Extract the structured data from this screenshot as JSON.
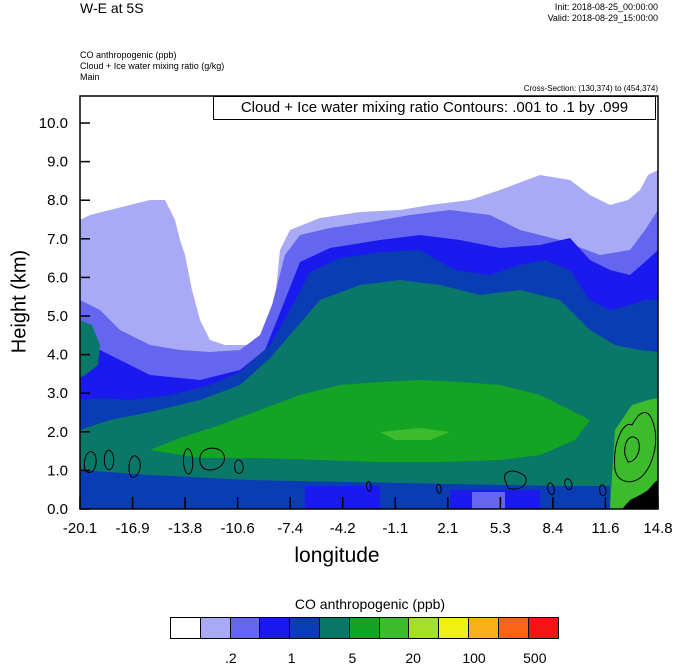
{
  "header": {
    "title": "W-E at 5S",
    "init": "Init: 2018-08-25_00:00:00",
    "valid": "Valid: 2018-08-29_15:00:00",
    "fields": [
      "CO anthropogenic   (ppb)",
      "Cloud + Ice water mixing ratio   (g/kg)",
      "Main"
    ],
    "cross_section": "Cross-Section: (130,374) to (454,374)",
    "contour_label": "Cloud + Ice water mixing ratio Contours: .001 to .1 by .099"
  },
  "colors": {
    "palette": [
      "#ffffff",
      "#a8aaf5",
      "#6466f0",
      "#1a1aef",
      "#0a3cb4",
      "#0a7868",
      "#14a424",
      "#3cbc2c",
      "#a4e028",
      "#f0f014",
      "#f8b018",
      "#f86418",
      "#f41414"
    ],
    "land": "#000000"
  },
  "chart_data": {
    "type": "heatmap",
    "xlabel": "longitude",
    "ylabel": "Height (km)",
    "x_ticks": [
      "-20.1",
      "-16.9",
      "-13.8",
      "-10.6",
      "-7.4",
      "-4.2",
      "-1.1",
      "2.1",
      "5.3",
      "8.4",
      "11.6",
      "14.8"
    ],
    "y_ticks": [
      "0.0",
      "1.0",
      "2.0",
      "3.0",
      "4.0",
      "5.0",
      "6.0",
      "7.0",
      "8.0",
      "9.0",
      "10.0"
    ],
    "xlim": [
      -20.1,
      14.8
    ],
    "ylim": [
      0,
      10.7
    ],
    "colorbar": {
      "title": "CO anthropogenic  (ppb)",
      "tick_labels": [
        ".2",
        "1",
        "5",
        "20",
        "100",
        "500"
      ]
    },
    "contours": {
      "field": "Cloud + Ice water mixing ratio",
      "min": 0.001,
      "max": 0.1,
      "interval": 0.099
    }
  }
}
